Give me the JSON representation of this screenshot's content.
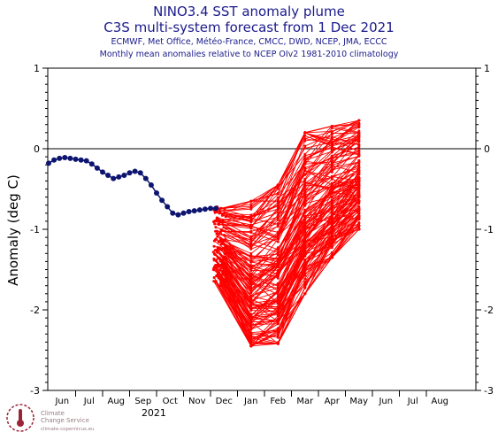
{
  "header": {
    "title": "NINO3.4 SST anomaly plume",
    "subtitle": "C3S multi-system forecast from 1 Dec 2021",
    "systems": "ECMWF, Met Office, Météo-France, CMCC, DWD, NCEP, JMA, ECCC",
    "note": "Monthly mean anomalies relative to NCEP OIv2 1981-2010 climatology"
  },
  "logo": {
    "line1": "Climate",
    "line2": "Change Service",
    "line3": "climate.copernicus.eu"
  },
  "chart_data": {
    "type": "line",
    "ylabel": "Anomaly (deg C)",
    "ylim": [
      -3,
      1
    ],
    "yticks": [
      1,
      0,
      -1,
      -2,
      -3
    ],
    "months": [
      "Jun",
      "Jul",
      "Aug",
      "Sep",
      "Oct",
      "Nov",
      "Dec",
      "Jan",
      "Feb",
      "Mar",
      "Apr",
      "May",
      "Jun",
      "Jul",
      "Aug"
    ],
    "year_label": "2021",
    "zero_line": true,
    "colors": {
      "observed": "#0d1570",
      "forecast": "#ff0000",
      "axis": "#000000"
    },
    "observed": {
      "name": "observed",
      "x": [
        0,
        0.2,
        0.4,
        0.6,
        0.8,
        1.0,
        1.2,
        1.4,
        1.6,
        1.8,
        2.0,
        2.2,
        2.4,
        2.6,
        2.8,
        3.0,
        3.2,
        3.4,
        3.6,
        3.8,
        4.0,
        4.2,
        4.4,
        4.6,
        4.8,
        5.0,
        5.2,
        5.4,
        5.6,
        5.8,
        6.0,
        6.2
      ],
      "y": [
        -0.18,
        -0.14,
        -0.12,
        -0.11,
        -0.12,
        -0.13,
        -0.14,
        -0.15,
        -0.19,
        -0.24,
        -0.29,
        -0.33,
        -0.37,
        -0.35,
        -0.33,
        -0.3,
        -0.28,
        -0.3,
        -0.37,
        -0.45,
        -0.55,
        -0.64,
        -0.72,
        -0.8,
        -0.82,
        -0.8,
        -0.78,
        -0.77,
        -0.76,
        -0.75,
        -0.74,
        -0.74
      ]
    },
    "forecast": {
      "x": [
        6.5,
        7.5,
        8.5,
        9.5,
        10.5,
        11.5
      ],
      "members": 150,
      "start_range": [
        -1.7,
        -0.72
      ],
      "jan_range": [
        -2.45,
        -0.65
      ],
      "feb_range": [
        -2.42,
        -0.45
      ],
      "mar_range": [
        -1.8,
        0.2
      ],
      "apr_range": [
        -1.35,
        0.28
      ],
      "may_range": [
        -1.0,
        0.35
      ]
    }
  }
}
